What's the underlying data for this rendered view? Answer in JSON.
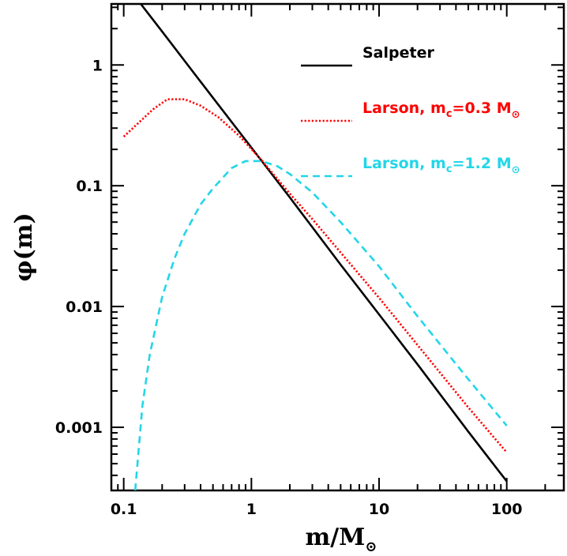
{
  "chart_data": {
    "type": "line",
    "xscale": "log",
    "yscale": "log",
    "xlim": [
      0.08,
      280
    ],
    "ylim": [
      0.0003,
      3.2
    ],
    "xlabel": {
      "main": "m/M",
      "sub": "⊙"
    },
    "ylabel": "φ(m)",
    "legend_position": "top-right",
    "x_ticks": [
      {
        "value": 0.1,
        "label": "0.1"
      },
      {
        "value": 1,
        "label": "1"
      },
      {
        "value": 10,
        "label": "10"
      },
      {
        "value": 100,
        "label": "100"
      }
    ],
    "y_ticks": [
      {
        "value": 0.001,
        "label": "0.001"
      },
      {
        "value": 0.01,
        "label": "0.01"
      },
      {
        "value": 0.1,
        "label": "0.1"
      },
      {
        "value": 1,
        "label": "1"
      }
    ],
    "series": [
      {
        "name": "Salpeter",
        "color": "#000000",
        "style": "solid",
        "points": [
          [
            0.136,
            3.2
          ],
          [
            0.2,
            1.89
          ],
          [
            0.3,
            1.08
          ],
          [
            0.5,
            0.535
          ],
          [
            1,
            0.207
          ],
          [
            2,
            0.08
          ],
          [
            5,
            0.0222
          ],
          [
            10,
            0.0086
          ],
          [
            20,
            0.00332
          ],
          [
            50,
            0.00092
          ],
          [
            100,
            0.000357
          ]
        ]
      },
      {
        "name": "Larson, m_c=0.3 M⊙",
        "label_parts": {
          "pre": "Larson, m",
          "sub": "c",
          "mid": "=0.3 M",
          "sub2": "⊙"
        },
        "color": "#ff0000",
        "style": "dotted",
        "points": [
          [
            0.1,
            0.255
          ],
          [
            0.13,
            0.33
          ],
          [
            0.17,
            0.43
          ],
          [
            0.22,
            0.52
          ],
          [
            0.3,
            0.52
          ],
          [
            0.4,
            0.46
          ],
          [
            0.55,
            0.37
          ],
          [
            0.8,
            0.26
          ],
          [
            1.2,
            0.163
          ],
          [
            2,
            0.086
          ],
          [
            3,
            0.053
          ],
          [
            5,
            0.028
          ],
          [
            10,
            0.0118
          ],
          [
            20,
            0.0048
          ],
          [
            50,
            0.00146
          ],
          [
            100,
            0.00062
          ]
        ]
      },
      {
        "name": "Larson, m_c=1.2 M⊙",
        "label_parts": {
          "pre": "Larson, m",
          "sub": "c",
          "mid": "=1.2 M",
          "sub2": "⊙"
        },
        "color": "#22d6e8",
        "style": "dashed",
        "points": [
          [
            0.123,
            0.0003
          ],
          [
            0.14,
            0.0015
          ],
          [
            0.16,
            0.004
          ],
          [
            0.2,
            0.012
          ],
          [
            0.25,
            0.025
          ],
          [
            0.3,
            0.04
          ],
          [
            0.4,
            0.07
          ],
          [
            0.5,
            0.095
          ],
          [
            0.7,
            0.14
          ],
          [
            0.9,
            0.16
          ],
          [
            1.2,
            0.16
          ],
          [
            1.6,
            0.145
          ],
          [
            2,
            0.125
          ],
          [
            3,
            0.088
          ],
          [
            5,
            0.05
          ],
          [
            10,
            0.0215
          ],
          [
            20,
            0.0083
          ],
          [
            50,
            0.0025
          ],
          [
            100,
            0.00103
          ]
        ]
      }
    ]
  }
}
